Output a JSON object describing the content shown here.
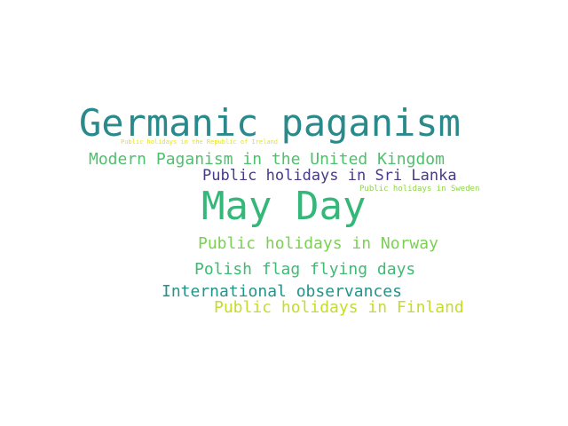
{
  "word_cloud": {
    "words": [
      {
        "id": "germanic",
        "text": "Germanic paganism",
        "color": "#2a8a8b"
      },
      {
        "id": "ireland",
        "text": "Public holidays in the Republic of Ireland",
        "color": "#e3e418"
      },
      {
        "id": "modern",
        "text": "Modern Paganism in the United Kingdom",
        "color": "#4fc06d"
      },
      {
        "id": "srilanka",
        "text": "Public holidays in Sri Lanka",
        "color": "#463b86"
      },
      {
        "id": "sweden",
        "text": "Public holidays in Sweden",
        "color": "#8fd449"
      },
      {
        "id": "mayday",
        "text": "May Day",
        "color": "#35b779"
      },
      {
        "id": "norway",
        "text": "Public holidays in Norway",
        "color": "#7ad151"
      },
      {
        "id": "polish",
        "text": "Polish flag flying days",
        "color": "#3dbc73"
      },
      {
        "id": "intl",
        "text": "International observances",
        "color": "#21948b"
      },
      {
        "id": "finland",
        "text": "Public holidays in Finland",
        "color": "#c5dd2a"
      }
    ]
  }
}
